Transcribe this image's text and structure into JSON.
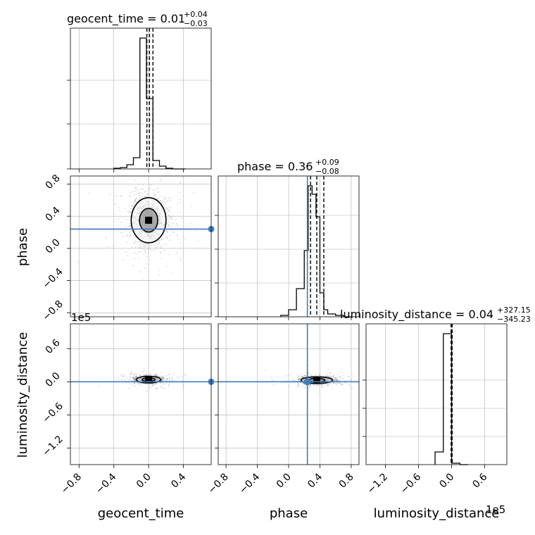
{
  "chart_data": [
    {
      "type": "histogram",
      "panel": "geocent_time",
      "title": {
        "prefix": "geocent_time = ",
        "value": "0.01",
        "upper": "+0.04",
        "lower": "−0.03"
      },
      "xlim": [
        -0.9,
        0.72
      ],
      "ylim": [
        0,
        1.0
      ],
      "bins": [
        -0.4,
        -0.325,
        -0.25,
        -0.175,
        -0.1,
        -0.025,
        0.05,
        0.125,
        0.2,
        0.275,
        0.35,
        0.425
      ],
      "counts": [
        0.005,
        0.01,
        0.03,
        0.08,
        0.93,
        0.5,
        0.06,
        0.02,
        0.005,
        0.0,
        0.0
      ],
      "quantiles": [
        -0.02,
        0.01,
        0.05
      ],
      "grid": true
    },
    {
      "type": "scatter-contour",
      "panel": "geocent_time-phase",
      "xlim": [
        -0.9,
        0.72
      ],
      "ylim": [
        -0.85,
        0.9
      ],
      "ylabel": "phase",
      "ytick_labels": [
        "−0.8",
        "−0.4",
        "0.0",
        "0.4",
        "0.8"
      ],
      "ytick_values": [
        -0.8,
        -0.4,
        0.0,
        0.4,
        0.8
      ],
      "center": [
        0.0,
        0.35
      ],
      "spread": [
        0.1,
        0.14
      ],
      "truth_y": 0.24,
      "grid": true
    },
    {
      "type": "histogram",
      "panel": "phase",
      "title": {
        "prefix": "phase = ",
        "value": "0.36",
        "upper": "+0.09",
        "lower": "−0.08"
      },
      "xlim": [
        -0.9,
        0.9
      ],
      "ylim": [
        0,
        1.0
      ],
      "bins": [
        -0.1,
        0.0,
        0.1,
        0.2,
        0.25,
        0.3,
        0.35,
        0.4,
        0.45,
        0.5,
        0.6,
        0.7,
        0.8
      ],
      "counts": [
        0.01,
        0.05,
        0.2,
        0.47,
        0.93,
        0.87,
        0.71,
        0.17,
        0.05,
        0.02,
        0.01,
        0.0
      ],
      "quantiles": [
        0.28,
        0.36,
        0.45
      ],
      "truth": 0.24,
      "grid": true
    },
    {
      "type": "scatter-contour",
      "panel": "geocent_time-luminosity_distance",
      "xlim": [
        -0.9,
        0.72
      ],
      "ylim": [
        -1.5,
        1.05
      ],
      "xlabel": "geocent_time",
      "ylabel": "luminosity_distance",
      "offset_label": "1e5",
      "xtick_labels": [
        "−0.8",
        "−0.4",
        "0.0",
        "0.4"
      ],
      "xtick_values": [
        -0.8,
        -0.4,
        0.0,
        0.4
      ],
      "ytick_labels": [
        "0.6",
        "0.0",
        "−0.6",
        "−1.2"
      ],
      "ytick_values": [
        0.6,
        0.0,
        -0.6,
        -1.2
      ],
      "center": [
        0.0,
        0.04
      ],
      "spread": [
        0.07,
        0.03
      ],
      "truth_y": 0.0,
      "grid": true
    },
    {
      "type": "scatter-contour",
      "panel": "phase-luminosity_distance",
      "xlim": [
        -0.9,
        0.9
      ],
      "ylim": [
        -1.5,
        1.05
      ],
      "xlabel": "phase",
      "xtick_labels": [
        "−0.8",
        "−0.4",
        "0.0",
        "0.4",
        "0.8"
      ],
      "xtick_values": [
        -0.8,
        -0.4,
        0.0,
        0.4,
        0.8
      ],
      "center": [
        0.36,
        0.03
      ],
      "spread": [
        0.1,
        0.03
      ],
      "truth_x": 0.24,
      "truth_y": 0.0,
      "grid": true
    },
    {
      "type": "histogram",
      "panel": "luminosity_distance",
      "title": {
        "prefix": "luminosity_distance = ",
        "value": "0.04",
        "upper": "+327.15",
        "lower": "−345.23"
      },
      "xlim": [
        -1.55,
        1.0
      ],
      "ylim": [
        0,
        1.0
      ],
      "bins": [
        -0.3,
        -0.15,
        0.0,
        0.15,
        0.3
      ],
      "counts": [
        0.09,
        0.93,
        0.01,
        0.0
      ],
      "quantiles": [
        -0.01,
        0.0,
        0.01
      ],
      "xlabel": "luminosity_distance",
      "offset_label": "1e5",
      "xtick_labels": [
        "−1.2",
        "−0.6",
        "0.0",
        "0.6"
      ],
      "xtick_values": [
        -1.2,
        -0.6,
        0.0,
        0.6
      ],
      "grid": true
    }
  ],
  "colors": {
    "truth": "#3d7ebf",
    "line": "#000000",
    "grid": "#b0b0b0",
    "points": "#555555"
  }
}
